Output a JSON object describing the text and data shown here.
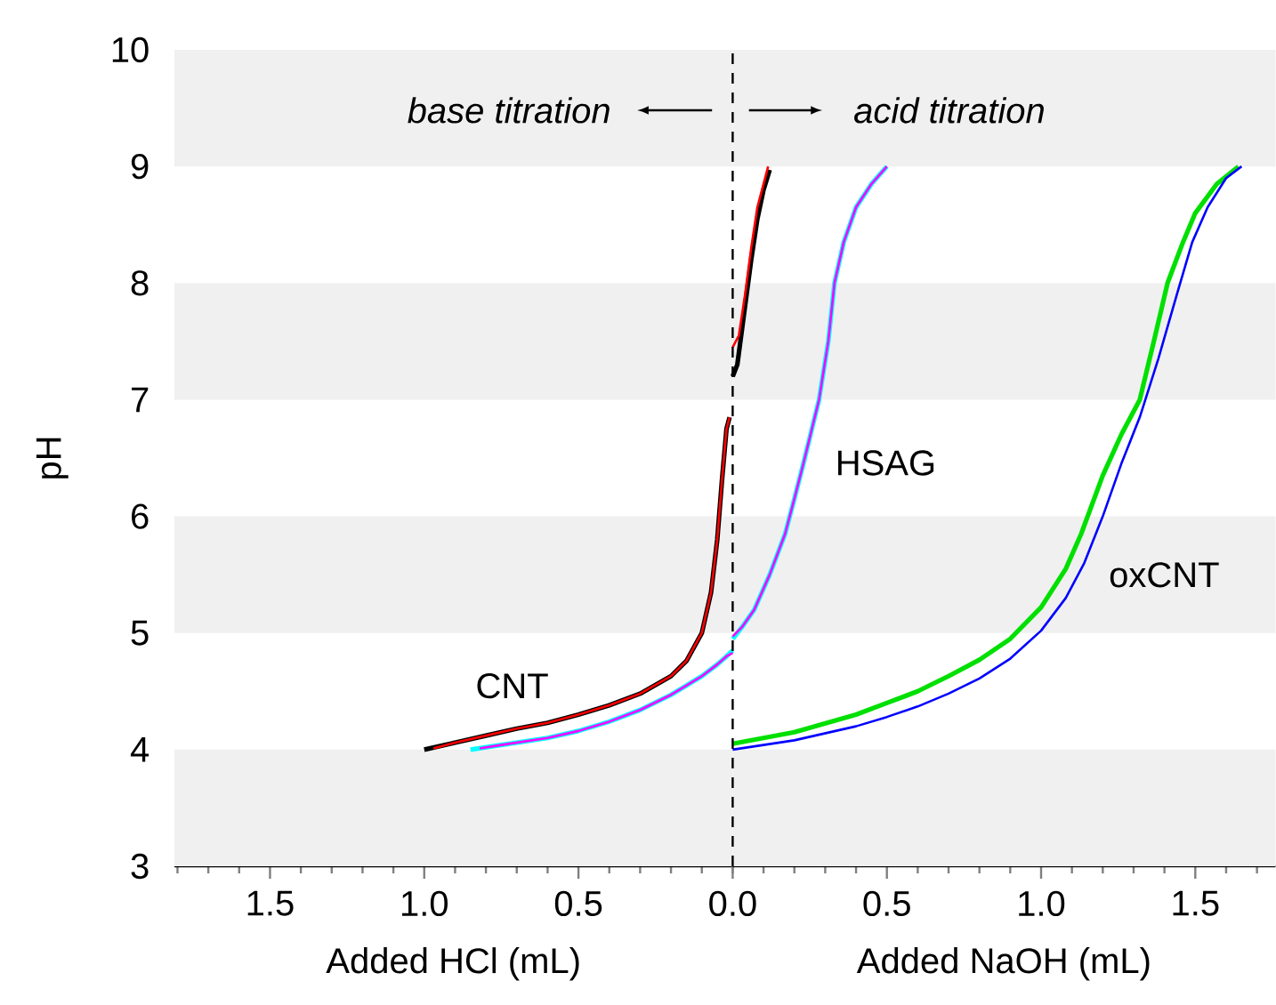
{
  "chart_data": [
    {
      "type": "line",
      "xlabel": "Added HCl (mL)",
      "ylabel": "pH",
      "xlim": [
        1.81,
        0
      ],
      "ylim": [
        3,
        10
      ],
      "xticks": [
        {
          "value": 1.5,
          "label": "1.5"
        },
        {
          "value": 1.0,
          "label": "1.0"
        },
        {
          "value": 0.5,
          "label": "0.5"
        },
        {
          "value": 0.0,
          "label": null
        },
        {
          "value": 1.8,
          "label": null
        },
        {
          "value": 1.7,
          "label": null
        },
        {
          "value": 1.6,
          "label": null
        },
        {
          "value": 1.4,
          "label": null
        },
        {
          "value": 1.3,
          "label": null
        },
        {
          "value": 1.2,
          "label": null
        },
        {
          "value": 1.1,
          "label": null
        },
        {
          "value": 0.9,
          "label": null
        },
        {
          "value": 0.8,
          "label": null
        },
        {
          "value": 0.7,
          "label": null
        },
        {
          "value": 0.6,
          "label": null
        },
        {
          "value": 0.4,
          "label": null
        },
        {
          "value": 0.3,
          "label": null
        },
        {
          "value": 0.2,
          "label": null
        },
        {
          "value": 0.1,
          "label": null
        }
      ],
      "yticks": [
        3,
        4,
        5,
        6,
        7,
        8,
        9,
        10
      ],
      "bands": [
        {
          "axis": "y",
          "from": 3,
          "to": 4,
          "color": "#f0f0f0"
        },
        {
          "axis": "y",
          "from": 5,
          "to": 6,
          "color": "#f0f0f0"
        },
        {
          "axis": "y",
          "from": 7,
          "to": 8,
          "color": "#f0f0f0"
        },
        {
          "axis": "y",
          "from": 9,
          "to": 10,
          "color": "#f0f0f0"
        }
      ],
      "annotations": [
        "base titration",
        "CNT"
      ],
      "series": [
        {
          "color": "#000000",
          "x": [
            1.0,
            0.9,
            0.8,
            0.7,
            0.6,
            0.5,
            0.4,
            0.3,
            0.2,
            0.15,
            0.1,
            0.07,
            0.05,
            0.035,
            0.02,
            0.01
          ],
          "values": [
            4.0,
            4.06,
            4.12,
            4.18,
            4.23,
            4.3,
            4.38,
            4.48,
            4.63,
            4.76,
            5.0,
            5.35,
            5.8,
            6.3,
            6.75,
            6.85
          ]
        },
        {
          "color": "#ff0000",
          "x": [
            0.97,
            0.9,
            0.8,
            0.7,
            0.6,
            0.5,
            0.4,
            0.3,
            0.2,
            0.15,
            0.1,
            0.07,
            0.05,
            0.035,
            0.02,
            0.01
          ],
          "values": [
            4.01,
            4.06,
            4.12,
            4.18,
            4.23,
            4.3,
            4.38,
            4.48,
            4.63,
            4.76,
            5.0,
            5.35,
            5.8,
            6.3,
            6.75,
            6.85
          ]
        },
        {
          "color": "#00ffff",
          "x": [
            0.85,
            0.75,
            0.6,
            0.5,
            0.4,
            0.3,
            0.2,
            0.1,
            0.05,
            0.02,
            0.0
          ],
          "values": [
            4.0,
            4.04,
            4.1,
            4.16,
            4.24,
            4.34,
            4.47,
            4.63,
            4.73,
            4.8,
            4.85
          ]
        },
        {
          "color": "#ff00ff",
          "x": [
            0.82,
            0.75,
            0.6,
            0.5,
            0.4,
            0.3,
            0.2,
            0.1,
            0.05,
            0.02,
            0.0
          ],
          "values": [
            4.01,
            4.04,
            4.1,
            4.16,
            4.24,
            4.34,
            4.47,
            4.63,
            4.73,
            4.8,
            4.83
          ]
        }
      ]
    },
    {
      "type": "line",
      "xlabel": "Added NaOH (mL)",
      "tick_labels": "x",
      "xlim": [
        0,
        1.76
      ],
      "ylim": [
        3,
        10
      ],
      "xticks": [
        {
          "value": 0.0,
          "label": "0.0"
        },
        {
          "value": 0.5,
          "label": "0.5"
        },
        {
          "value": 1.0,
          "label": "1.0"
        },
        {
          "value": 1.5,
          "label": "1.5"
        },
        {
          "value": 0.1,
          "label": null
        },
        {
          "value": 0.2,
          "label": null
        },
        {
          "value": 0.3,
          "label": null
        },
        {
          "value": 0.4,
          "label": null
        },
        {
          "value": 0.6,
          "label": null
        },
        {
          "value": 0.7,
          "label": null
        },
        {
          "value": 0.8,
          "label": null
        },
        {
          "value": 0.9,
          "label": null
        },
        {
          "value": 1.1,
          "label": null
        },
        {
          "value": 1.2,
          "label": null
        },
        {
          "value": 1.3,
          "label": null
        },
        {
          "value": 1.4,
          "label": null
        },
        {
          "value": 1.6,
          "label": null
        },
        {
          "value": 1.7,
          "label": null
        }
      ],
      "bands": [
        {
          "axis": "y",
          "from": 3,
          "to": 4,
          "color": "#f0f0f0"
        },
        {
          "axis": "y",
          "from": 5,
          "to": 6,
          "color": "#f0f0f0"
        },
        {
          "axis": "y",
          "from": 7,
          "to": 8,
          "color": "#f0f0f0"
        },
        {
          "axis": "y",
          "from": 9,
          "to": 10,
          "color": "#f0f0f0"
        }
      ],
      "ref_lines": [
        {
          "axis": "x",
          "value": 0,
          "line_style": "dashed",
          "color": "#000000"
        }
      ],
      "annotations": [
        "acid titration",
        "HSAG",
        "oxCNT"
      ],
      "series": [
        {
          "color": "#000000",
          "x": [
            0,
            0.015,
            0.04,
            0.06,
            0.08,
            0.1,
            0.12
          ],
          "values": [
            7.2,
            7.3,
            7.8,
            8.2,
            8.55,
            8.8,
            8.97
          ]
        },
        {
          "color": "#ff0000",
          "x": [
            0,
            0.02,
            0.04,
            0.06,
            0.08,
            0.1,
            0.115
          ],
          "values": [
            7.45,
            7.55,
            7.9,
            8.3,
            8.65,
            8.85,
            9.0
          ]
        },
        {
          "color": "#00ffff",
          "x": [
            0,
            0.03,
            0.07,
            0.12,
            0.17,
            0.2,
            0.23,
            0.28,
            0.31,
            0.33,
            0.36,
            0.4,
            0.45,
            0.5
          ],
          "values": [
            4.95,
            5.05,
            5.2,
            5.5,
            5.85,
            6.15,
            6.46,
            7.0,
            7.5,
            8.0,
            8.35,
            8.65,
            8.85,
            9.0
          ]
        },
        {
          "color": "#ff00ff",
          "x": [
            0,
            0.03,
            0.07,
            0.12,
            0.17,
            0.2,
            0.23,
            0.28,
            0.31,
            0.33,
            0.36,
            0.4,
            0.45,
            0.5
          ],
          "values": [
            4.97,
            5.05,
            5.2,
            5.5,
            5.85,
            6.15,
            6.46,
            7.0,
            7.5,
            8.0,
            8.35,
            8.65,
            8.85,
            9.0
          ]
        },
        {
          "color": "#00e000",
          "x": [
            0,
            0.2,
            0.4,
            0.5,
            0.6,
            0.7,
            0.8,
            0.9,
            1.0,
            1.08,
            1.13,
            1.2,
            1.26,
            1.32,
            1.37,
            1.41,
            1.46,
            1.5,
            1.57,
            1.64
          ],
          "values": [
            4.05,
            4.15,
            4.3,
            4.4,
            4.5,
            4.63,
            4.77,
            4.95,
            5.22,
            5.55,
            5.85,
            6.35,
            6.7,
            7.0,
            7.55,
            8.0,
            8.35,
            8.6,
            8.85,
            9.0
          ]
        },
        {
          "color": "#0000ff",
          "x": [
            0,
            0.2,
            0.4,
            0.5,
            0.6,
            0.7,
            0.8,
            0.9,
            1.0,
            1.08,
            1.14,
            1.2,
            1.26,
            1.32,
            1.38,
            1.44,
            1.49,
            1.54,
            1.6,
            1.65
          ],
          "values": [
            4.0,
            4.08,
            4.2,
            4.28,
            4.37,
            4.48,
            4.61,
            4.78,
            5.02,
            5.3,
            5.6,
            6.0,
            6.45,
            6.85,
            7.35,
            7.9,
            8.35,
            8.65,
            8.9,
            9.0
          ]
        }
      ]
    }
  ]
}
